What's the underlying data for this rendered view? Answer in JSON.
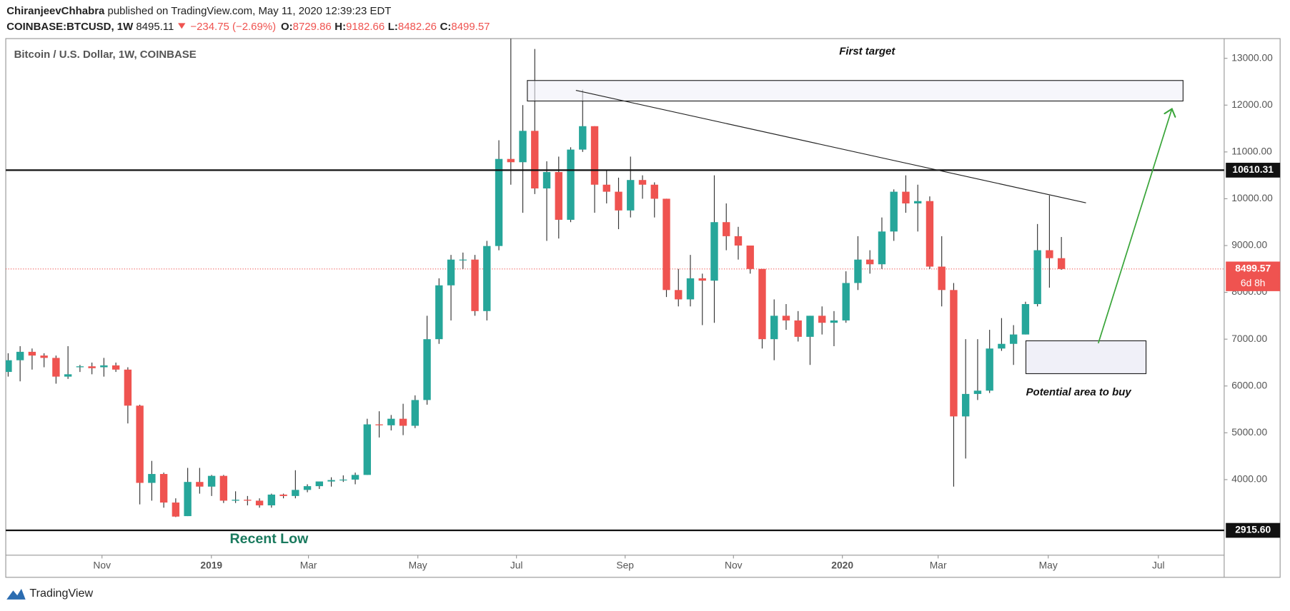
{
  "header": {
    "author": "ChiranjeevChhabra",
    "published": "published on TradingView.com, May 11, 2020 12:39:23 EDT",
    "symbol": "COINBASE:BTCUSD, 1W",
    "price": "8495.11",
    "change": "−234.75 (−2.69%)",
    "ohlc": [
      {
        "label": "O:",
        "value": "8729.86"
      },
      {
        "label": "H:",
        "value": "9182.66"
      },
      {
        "label": "L:",
        "value": "8482.26"
      },
      {
        "label": "C:",
        "value": "8499.57"
      }
    ]
  },
  "footer": {
    "brand": "TradingView"
  },
  "chart_data": {
    "type": "candlestick",
    "title": "Bitcoin / U.S. Dollar, 1W, COINBASE",
    "up_color": "#26a69a",
    "down_color": "#ef5350",
    "open": [
      6300,
      6550,
      6730,
      6650,
      6600,
      6200,
      6400,
      6420,
      6400,
      6440,
      6350,
      5580,
      3930,
      4120,
      3510,
      3220,
      3950,
      3850,
      4080,
      3550,
      3570,
      3550,
      3450,
      3680,
      3650,
      3780,
      3860,
      3960,
      3990,
      4000,
      4100,
      5180,
      5160,
      5300,
      5150,
      5700,
      7000,
      8150,
      8700,
      8700,
      7600,
      8990,
      10850,
      10780,
      11450,
      10220,
      10570,
      9550,
      11050,
      11550,
      10300,
      10150,
      9750,
      10400,
      10300,
      10000,
      8050,
      7850,
      8300,
      8250,
      9500,
      9200,
      9000,
      8500,
      7000,
      7500,
      7400,
      7050,
      7500,
      7350,
      7400,
      8200,
      8700,
      8600,
      9300,
      10150,
      9900,
      9950,
      8550,
      8050,
      5350,
      5830,
      5900,
      6800,
      6900,
      7100,
      7750,
      8900,
      8729.86
    ],
    "high": [
      6700,
      6850,
      6800,
      6700,
      6650,
      6850,
      6450,
      6500,
      6600,
      6500,
      6400,
      5600,
      4400,
      4150,
      3600,
      4250,
      4250,
      4100,
      4100,
      3750,
      3650,
      3600,
      3700,
      3700,
      4200,
      3900,
      3950,
      4050,
      4090,
      4150,
      5300,
      5460,
      5380,
      5620,
      5800,
      7500,
      8300,
      8800,
      8850,
      8800,
      9100,
      11250,
      13880,
      12000,
      13200,
      10800,
      10900,
      11100,
      12330,
      11550,
      10600,
      10450,
      10900,
      10500,
      10350,
      10000,
      8500,
      8800,
      8400,
      10500,
      9900,
      9400,
      9000,
      8500,
      7850,
      7750,
      7600,
      7500,
      7700,
      7600,
      8450,
      9200,
      8900,
      9600,
      10200,
      10500,
      10300,
      10050,
      9200,
      8200,
      7000,
      7000,
      7200,
      7450,
      7300,
      7800,
      9460,
      10070,
      9182.66
    ],
    "low": [
      6200,
      6100,
      6350,
      6400,
      6050,
      6150,
      6300,
      6250,
      6200,
      6300,
      5200,
      3470,
      3550,
      3400,
      3200,
      3220,
      3700,
      3650,
      3500,
      3500,
      3450,
      3400,
      3400,
      3600,
      3600,
      3730,
      3800,
      3850,
      3950,
      3900,
      4100,
      4900,
      5050,
      4950,
      5100,
      5600,
      6900,
      7400,
      8500,
      7500,
      7400,
      8900,
      10300,
      9700,
      10100,
      9100,
      9150,
      9500,
      11000,
      9700,
      9900,
      9350,
      9600,
      10000,
      9600,
      7900,
      7700,
      7700,
      7300,
      7350,
      8900,
      8700,
      8400,
      6800,
      6550,
      7200,
      6950,
      6450,
      7100,
      6850,
      7350,
      8050,
      8400,
      8500,
      9100,
      9700,
      9300,
      8500,
      7700,
      3850,
      4450,
      5700,
      5850,
      6750,
      6450,
      7100,
      7700,
      8100,
      8482.26
    ],
    "close": [
      6550,
      6730,
      6650,
      6600,
      6200,
      6250,
      6420,
      6380,
      6440,
      6350,
      5580,
      3930,
      4120,
      3510,
      3210,
      3950,
      3850,
      4080,
      3550,
      3570,
      3550,
      3450,
      3680,
      3650,
      3780,
      3860,
      3960,
      3990,
      4000,
      4100,
      5180,
      5160,
      5300,
      5150,
      5700,
      7000,
      8150,
      8700,
      8700,
      7600,
      8990,
      10850,
      10780,
      11450,
      10220,
      10570,
      9550,
      11050,
      11550,
      10300,
      10150,
      9750,
      10400,
      10300,
      10000,
      8050,
      7850,
      8300,
      8250,
      9500,
      9200,
      9000,
      8500,
      7000,
      7500,
      7400,
      7050,
      7500,
      7350,
      7400,
      8200,
      8700,
      8600,
      9300,
      10150,
      9900,
      9950,
      8550,
      8050,
      5350,
      5830,
      5900,
      6800,
      6900,
      7100,
      7750,
      8900,
      8730,
      8499.57
    ],
    "xlim": [
      -0.2,
      101.6
    ],
    "xticks": [
      {
        "value": 7.84,
        "label": "Nov"
      },
      {
        "value": 16.98,
        "label": "2019"
      },
      {
        "value": 25.09,
        "label": "Mar"
      },
      {
        "value": 34.23,
        "label": "May"
      },
      {
        "value": 42.47,
        "label": "Jul"
      },
      {
        "value": 51.55,
        "label": "Sep"
      },
      {
        "value": 60.6,
        "label": "Nov"
      },
      {
        "value": 69.7,
        "label": "2020"
      },
      {
        "value": 77.7,
        "label": "Mar"
      },
      {
        "value": 86.9,
        "label": "May"
      },
      {
        "value": 96.1,
        "label": "Jul"
      }
    ],
    "ylim": [
      2386,
      13421
    ],
    "yticks": [
      {
        "value": 4000,
        "label": "4000.00"
      },
      {
        "value": 5000,
        "label": "5000.00"
      },
      {
        "value": 6000,
        "label": "6000.00"
      },
      {
        "value": 7000,
        "label": "7000.00"
      },
      {
        "value": 8000,
        "label": "8000.00"
      },
      {
        "value": 9000,
        "label": "9000.00"
      },
      {
        "value": 10000,
        "label": "10000.00"
      },
      {
        "value": 11000,
        "label": "11000.00"
      },
      {
        "value": 12000,
        "label": "12000.00"
      },
      {
        "value": 13000,
        "label": "13000.00"
      }
    ],
    "levels": [
      {
        "value": 10610.31,
        "label": "10610.31"
      },
      {
        "value": 2915.6,
        "label": "2915.60"
      }
    ],
    "last": {
      "value": 8499.57,
      "label": "8499.57",
      "countdown": "6d 8h"
    },
    "annotations": {
      "target": "First target",
      "buy": "Potential area to buy",
      "low": "Recent Low"
    }
  }
}
